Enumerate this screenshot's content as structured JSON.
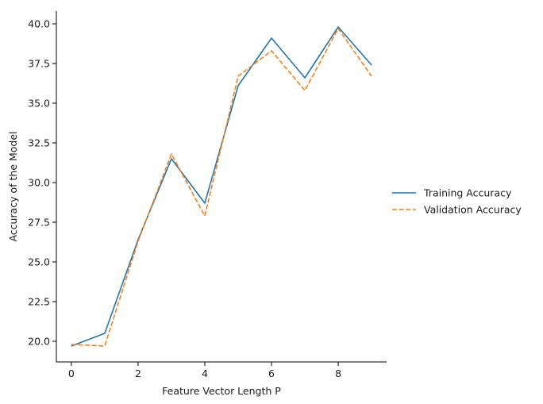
{
  "chart_data": {
    "type": "line",
    "title": "",
    "xlabel": "Feature Vector Length P",
    "ylabel": "Accuracy of the Model",
    "x": [
      0,
      1,
      2,
      3,
      4,
      5,
      6,
      7,
      8,
      9
    ],
    "xlim": [
      -0.45,
      9.45
    ],
    "ylim": [
      18.7,
      40.8
    ],
    "xticks": [
      0,
      2,
      4,
      6,
      8
    ],
    "xtick_labels": [
      "0",
      "2",
      "4",
      "6",
      "8"
    ],
    "yticks": [
      20.0,
      22.5,
      25.0,
      27.5,
      30.0,
      32.5,
      35.0,
      37.5,
      40.0
    ],
    "ytick_labels": [
      "20.0",
      "22.5",
      "25.0",
      "27.5",
      "30.0",
      "32.5",
      "35.0",
      "37.5",
      "40.0"
    ],
    "grid": false,
    "legend_position": "right",
    "series": [
      {
        "name": "Training Accuracy",
        "style": "solid",
        "color": "#1f77b4",
        "values": [
          19.7,
          20.5,
          26.4,
          31.5,
          28.7,
          36.1,
          39.1,
          36.6,
          39.8,
          37.4
        ]
      },
      {
        "name": "Validation Accuracy",
        "style": "dashed",
        "color": "#ff7f0e",
        "values": [
          19.8,
          19.7,
          26.3,
          31.8,
          27.9,
          36.7,
          38.3,
          35.8,
          39.7,
          36.7
        ]
      }
    ]
  }
}
